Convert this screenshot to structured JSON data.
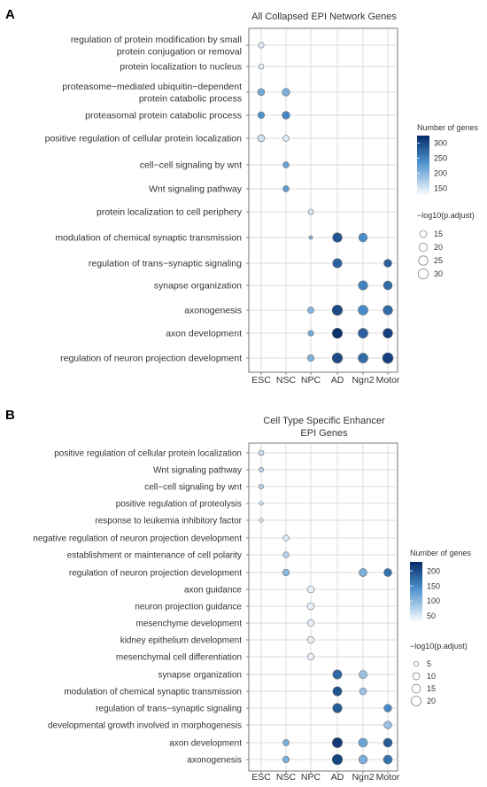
{
  "figure": {
    "panels": [
      "A",
      "B"
    ]
  },
  "chart_data": [
    {
      "panel": "A",
      "type": "scatter",
      "title": "All Collapsed EPI Network Genes",
      "xlabel": "",
      "ylabel": "",
      "categories": [
        "ESC",
        "NSC",
        "NPC",
        "AD",
        "Ngn2",
        "Motor"
      ],
      "terms": [
        "regulation of protein modification by small protein conjugation or removal",
        "protein localization to nucleus",
        "proteasome−mediated ubiquitin−dependent protein catabolic process",
        "proteasomal protein catabolic process",
        "positive regulation of cellular protein localization",
        "cell−cell signaling by wnt",
        "Wnt signaling pathway",
        "protein localization to cell periphery",
        "modulation of chemical synaptic transmission",
        "regulation of trans−synaptic signaling",
        "synapse organization",
        "axonogenesis",
        "axon development",
        "regulation of neuron projection development"
      ],
      "term_lines": [
        [
          "regulation of protein modification by small",
          "protein conjugation or removal"
        ],
        [
          "protein localization to nucleus"
        ],
        [
          "proteasome−mediated ubiquitin−dependent",
          "protein catabolic process"
        ],
        [
          "proteasomal protein catabolic process"
        ],
        [
          "positive regulation of cellular protein localization"
        ],
        [
          "cell−cell signaling by wnt"
        ],
        [
          "Wnt signaling pathway"
        ],
        [
          "protein localization to cell periphery"
        ],
        [
          "modulation of chemical synaptic transmission"
        ],
        [
          "regulation of trans−synaptic signaling"
        ],
        [
          "synapse organization"
        ],
        [
          "axonogenesis"
        ],
        [
          "axon development"
        ],
        [
          "regulation of neuron projection development"
        ]
      ],
      "points": [
        {
          "term": 0,
          "cell": "ESC",
          "genes": 140,
          "log10p": 10
        },
        {
          "term": 1,
          "cell": "ESC",
          "genes": 135,
          "log10p": 9
        },
        {
          "term": 2,
          "cell": "ESC",
          "genes": 210,
          "log10p": 14
        },
        {
          "term": 2,
          "cell": "NSC",
          "genes": 205,
          "log10p": 17
        },
        {
          "term": 3,
          "cell": "ESC",
          "genes": 235,
          "log10p": 13
        },
        {
          "term": 3,
          "cell": "NSC",
          "genes": 245,
          "log10p": 17
        },
        {
          "term": 4,
          "cell": "ESC",
          "genes": 150,
          "log10p": 14
        },
        {
          "term": 4,
          "cell": "NSC",
          "genes": 140,
          "log10p": 11
        },
        {
          "term": 5,
          "cell": "NSC",
          "genes": 220,
          "log10p": 11
        },
        {
          "term": 6,
          "cell": "NSC",
          "genes": 225,
          "log10p": 11
        },
        {
          "term": 7,
          "cell": "NPC",
          "genes": 145,
          "log10p": 9
        },
        {
          "term": 8,
          "cell": "NPC",
          "genes": 200,
          "log10p": 6
        },
        {
          "term": 8,
          "cell": "AD",
          "genes": 290,
          "log10p": 26
        },
        {
          "term": 8,
          "cell": "Ngn2",
          "genes": 240,
          "log10p": 21
        },
        {
          "term": 9,
          "cell": "AD",
          "genes": 280,
          "log10p": 25
        },
        {
          "term": 9,
          "cell": "Motor",
          "genes": 280,
          "log10p": 18
        },
        {
          "term": 10,
          "cell": "Ngn2",
          "genes": 250,
          "log10p": 25
        },
        {
          "term": 10,
          "cell": "Motor",
          "genes": 270,
          "log10p": 22
        },
        {
          "term": 11,
          "cell": "NPC",
          "genes": 200,
          "log10p": 12
        },
        {
          "term": 11,
          "cell": "AD",
          "genes": 300,
          "log10p": 31
        },
        {
          "term": 11,
          "cell": "Ngn2",
          "genes": 240,
          "log10p": 28
        },
        {
          "term": 11,
          "cell": "Motor",
          "genes": 270,
          "log10p": 26
        },
        {
          "term": 12,
          "cell": "NPC",
          "genes": 210,
          "log10p": 10
        },
        {
          "term": 12,
          "cell": "AD",
          "genes": 325,
          "log10p": 30
        },
        {
          "term": 12,
          "cell": "Ngn2",
          "genes": 280,
          "log10p": 28
        },
        {
          "term": 12,
          "cell": "Motor",
          "genes": 310,
          "log10p": 27
        },
        {
          "term": 13,
          "cell": "NPC",
          "genes": 200,
          "log10p": 13
        },
        {
          "term": 13,
          "cell": "AD",
          "genes": 300,
          "log10p": 31
        },
        {
          "term": 13,
          "cell": "Ngn2",
          "genes": 270,
          "log10p": 28
        },
        {
          "term": 13,
          "cell": "Motor",
          "genes": 310,
          "log10p": 33
        }
      ],
      "legend": {
        "color_title": "Number of genes",
        "color_ticks": [
          150,
          200,
          250,
          300
        ],
        "color_range": [
          130,
          325
        ],
        "size_title": "−log10(p.adjust)",
        "size_ticks": [
          15,
          20,
          25,
          30
        ],
        "size_range": [
          5,
          33
        ],
        "placement": "right"
      }
    },
    {
      "panel": "B",
      "type": "scatter",
      "title": "Cell Type Specific Enhancer EPI Genes",
      "title_lines": [
        "Cell Type Specific Enhancer",
        "EPI Genes"
      ],
      "xlabel": "",
      "ylabel": "",
      "categories": [
        "ESC",
        "NSC",
        "NPC",
        "AD",
        "Ngn2",
        "Motor"
      ],
      "terms": [
        "positive regulation of cellular protein localization",
        "Wnt signaling pathway",
        "cell−cell signaling by wnt",
        "positive regulation of proteolysis",
        "response to leukemia inhibitory factor",
        "negative regulation of neuron projection development",
        "establishment or maintenance of cell polarity",
        "regulation of neuron projection development",
        "axon guidance",
        "neuron projection guidance",
        "mesenchyme development",
        "kidney epithelium development",
        "mesenchymal cell differentiation",
        "synapse organization",
        "modulation of chemical synaptic transmission",
        "regulation of trans−synaptic signaling",
        "developmental growth involved in morphogenesis",
        "axon development",
        "axonogenesis"
      ],
      "term_lines": [
        [
          "positive regulation of cellular protein localization"
        ],
        [
          "Wnt signaling pathway"
        ],
        [
          "cell−cell signaling by wnt"
        ],
        [
          "positive regulation of proteolysis"
        ],
        [
          "response to leukemia inhibitory factor"
        ],
        [
          "negative regulation of neuron projection development"
        ],
        [
          "establishment or maintenance of cell polarity"
        ],
        [
          "regulation of neuron projection development"
        ],
        [
          "axon guidance"
        ],
        [
          "neuron projection guidance"
        ],
        [
          "mesenchyme development"
        ],
        [
          "kidney epithelium development"
        ],
        [
          "mesenchymal cell differentiation"
        ],
        [
          "synapse organization"
        ],
        [
          "modulation of chemical synaptic transmission"
        ],
        [
          "regulation of trans−synaptic signaling"
        ],
        [
          "developmental growth involved in morphogenesis"
        ],
        [
          "axon development"
        ],
        [
          "axonogenesis"
        ]
      ],
      "points": [
        {
          "term": 0,
          "cell": "ESC",
          "genes": 60,
          "log10p": 6
        },
        {
          "term": 1,
          "cell": "ESC",
          "genes": 70,
          "log10p": 5
        },
        {
          "term": 2,
          "cell": "ESC",
          "genes": 75,
          "log10p": 5
        },
        {
          "term": 3,
          "cell": "ESC",
          "genes": 60,
          "log10p": 4
        },
        {
          "term": 4,
          "cell": "ESC",
          "genes": 55,
          "log10p": 4
        },
        {
          "term": 5,
          "cell": "NSC",
          "genes": 45,
          "log10p": 7
        },
        {
          "term": 6,
          "cell": "NSC",
          "genes": 70,
          "log10p": 7
        },
        {
          "term": 7,
          "cell": "NSC",
          "genes": 100,
          "log10p": 9
        },
        {
          "term": 7,
          "cell": "Ngn2",
          "genes": 110,
          "log10p": 13
        },
        {
          "term": 7,
          "cell": "Motor",
          "genes": 170,
          "log10p": 13
        },
        {
          "term": 8,
          "cell": "NPC",
          "genes": 40,
          "log10p": 10
        },
        {
          "term": 9,
          "cell": "NPC",
          "genes": 40,
          "log10p": 10
        },
        {
          "term": 10,
          "cell": "NPC",
          "genes": 40,
          "log10p": 9
        },
        {
          "term": 11,
          "cell": "NPC",
          "genes": 40,
          "log10p": 9
        },
        {
          "term": 12,
          "cell": "NPC",
          "genes": 40,
          "log10p": 9
        },
        {
          "term": 13,
          "cell": "AD",
          "genes": 180,
          "log10p": 17
        },
        {
          "term": 13,
          "cell": "Ngn2",
          "genes": 90,
          "log10p": 13
        },
        {
          "term": 14,
          "cell": "AD",
          "genes": 200,
          "log10p": 17
        },
        {
          "term": 14,
          "cell": "Ngn2",
          "genes": 90,
          "log10p": 10
        },
        {
          "term": 15,
          "cell": "AD",
          "genes": 190,
          "log10p": 18
        },
        {
          "term": 15,
          "cell": "Motor",
          "genes": 150,
          "log10p": 12
        },
        {
          "term": 16,
          "cell": "Motor",
          "genes": 90,
          "log10p": 12
        },
        {
          "term": 17,
          "cell": "NSC",
          "genes": 110,
          "log10p": 8
        },
        {
          "term": 17,
          "cell": "AD",
          "genes": 220,
          "log10p": 21
        },
        {
          "term": 17,
          "cell": "Ngn2",
          "genes": 120,
          "log10p": 16
        },
        {
          "term": 17,
          "cell": "Motor",
          "genes": 190,
          "log10p": 16
        },
        {
          "term": 18,
          "cell": "NSC",
          "genes": 110,
          "log10p": 9
        },
        {
          "term": 18,
          "cell": "AD",
          "genes": 210,
          "log10p": 22
        },
        {
          "term": 18,
          "cell": "Ngn2",
          "genes": 110,
          "log10p": 15
        },
        {
          "term": 18,
          "cell": "Motor",
          "genes": 170,
          "log10p": 16
        }
      ],
      "legend": {
        "color_title": "Number of genes",
        "color_ticks": [
          50,
          100,
          150,
          200
        ],
        "color_range": [
          35,
          230
        ],
        "size_title": "−log10(p.adjust)",
        "size_ticks": [
          5,
          10,
          15,
          20
        ],
        "size_range": [
          3,
          22
        ],
        "placement": "right"
      }
    }
  ],
  "colors": {
    "low": "#eef5fc",
    "high": "#08306b",
    "mid": "#4a90cc",
    "grid": "#cfcfcf",
    "frame": "#555555",
    "point_stroke": "#6e6e6e"
  }
}
